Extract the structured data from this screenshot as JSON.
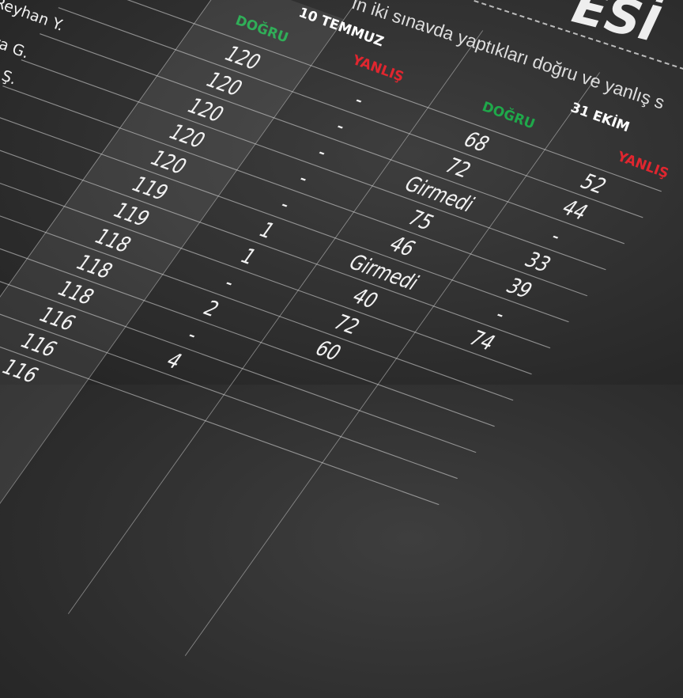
{
  "title_fragment": "ESİ",
  "subtitle_fragment": "ın iki sınavda yaptıkları doğru ve yanlış s",
  "names": [
    "Reyhan Y.",
    "ra G.",
    "t Ş."
  ],
  "exams": [
    {
      "date": "10 TEMMUZ",
      "correct_label": "DOĞRU",
      "wrong_label": "YANLIŞ"
    },
    {
      "date": "31 EKİM",
      "correct_label": "DOĞRU",
      "wrong_label": "YANLIŞ"
    }
  ],
  "colors": {
    "correct": "#1fa84a",
    "wrong": "#e0262f",
    "background": "#333333"
  },
  "rows": [
    [
      "120",
      "-",
      "68",
      "52"
    ],
    [
      "120",
      "-",
      "72",
      "44"
    ],
    [
      "120",
      "-",
      "Girmedi",
      "-"
    ],
    [
      "120",
      "-",
      "75",
      "33"
    ],
    [
      "120",
      "-",
      "46",
      "39"
    ],
    [
      "119",
      "1",
      "Girmedi",
      "-"
    ],
    [
      "119",
      "1",
      "40",
      "74"
    ],
    [
      "118",
      "-",
      "72",
      ""
    ],
    [
      "118",
      "2",
      "60",
      ""
    ],
    [
      "118",
      "-",
      "",
      ""
    ],
    [
      "116",
      "4",
      "",
      ""
    ],
    [
      "116",
      "",
      "",
      ""
    ],
    [
      "116",
      "",
      "",
      ""
    ]
  ]
}
